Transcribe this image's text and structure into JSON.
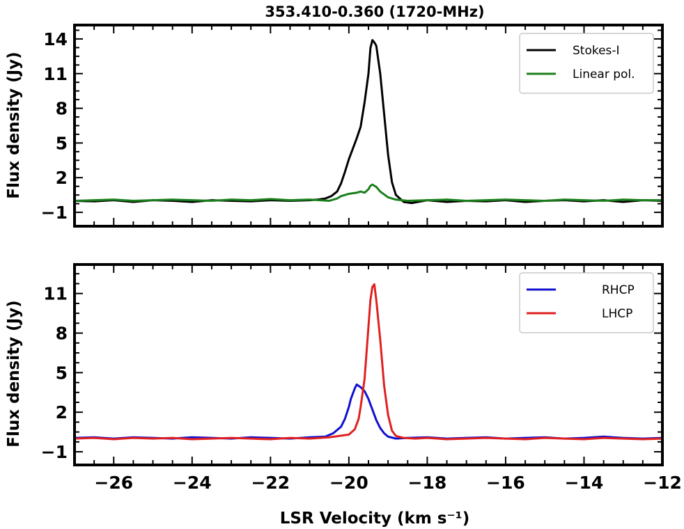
{
  "chart_data": [
    {
      "type": "line",
      "title": "353.410-0.360 (1720-MHz)",
      "xlabel": "",
      "ylabel": "Flux density (Jy)",
      "xlim": [
        -27,
        -12
      ],
      "ylim": [
        -2.2,
        15.2
      ],
      "yticks": [
        -1,
        2,
        5,
        8,
        11,
        14
      ],
      "ytick_labels": [
        "−1",
        "2",
        "5",
        "8",
        "11",
        "14"
      ],
      "show_xtick_labels": false,
      "legend_position": "top-right",
      "series": [
        {
          "name": "Stokes-I",
          "color": "#000000",
          "x": [
            -27.0,
            -26.5,
            -26.0,
            -25.5,
            -25.0,
            -24.5,
            -24.0,
            -23.5,
            -23.0,
            -22.5,
            -22.0,
            -21.5,
            -21.0,
            -20.8,
            -20.6,
            -20.45,
            -20.3,
            -20.2,
            -20.1,
            -20.0,
            -19.9,
            -19.8,
            -19.7,
            -19.6,
            -19.5,
            -19.45,
            -19.4,
            -19.35,
            -19.3,
            -19.2,
            -19.1,
            -19.0,
            -18.9,
            -18.8,
            -18.6,
            -18.4,
            -18.0,
            -17.5,
            -17.0,
            -16.5,
            -16.0,
            -15.5,
            -15.0,
            -14.5,
            -14.0,
            -13.5,
            -13.0,
            -12.5,
            -12.0
          ],
          "y": [
            0.0,
            -0.05,
            0.05,
            -0.1,
            0.05,
            0.0,
            -0.1,
            0.05,
            0.0,
            -0.05,
            0.05,
            0.0,
            0.05,
            0.1,
            0.2,
            0.4,
            0.8,
            1.5,
            2.5,
            3.6,
            4.5,
            5.4,
            6.4,
            8.5,
            11.0,
            13.2,
            13.9,
            13.7,
            13.4,
            11.0,
            7.5,
            4.0,
            1.6,
            0.5,
            -0.1,
            -0.2,
            0.05,
            -0.1,
            0.0,
            -0.05,
            0.05,
            -0.1,
            0.0,
            0.05,
            -0.05,
            0.05,
            -0.1,
            0.05,
            0.0
          ]
        },
        {
          "name": "Linear pol.",
          "color": "#1a7f1a",
          "x": [
            -27.0,
            -26.5,
            -26.0,
            -25.5,
            -25.0,
            -24.5,
            -24.0,
            -23.5,
            -23.0,
            -22.5,
            -22.0,
            -21.5,
            -21.0,
            -20.5,
            -20.3,
            -20.2,
            -20.0,
            -19.8,
            -19.7,
            -19.6,
            -19.5,
            -19.45,
            -19.4,
            -19.35,
            -19.3,
            -19.2,
            -19.0,
            -18.8,
            -18.5,
            -18.0,
            -17.5,
            -17.0,
            -16.5,
            -16.0,
            -15.5,
            -15.0,
            -14.5,
            -14.0,
            -13.5,
            -13.0,
            -12.5,
            -12.0
          ],
          "y": [
            0.0,
            0.05,
            0.1,
            0.0,
            0.05,
            0.1,
            0.05,
            0.0,
            0.1,
            0.05,
            0.15,
            0.05,
            0.1,
            0.0,
            0.2,
            0.4,
            0.6,
            0.7,
            0.8,
            0.7,
            1.0,
            1.3,
            1.4,
            1.3,
            1.2,
            0.8,
            0.3,
            0.1,
            0.0,
            0.05,
            0.1,
            0.0,
            0.05,
            0.1,
            0.05,
            0.0,
            0.1,
            0.05,
            0.0,
            0.1,
            0.05,
            0.05
          ]
        }
      ]
    },
    {
      "type": "line",
      "title": "",
      "xlabel": "LSR Velocity (km s⁻¹)",
      "ylabel": "Flux density (Jy)",
      "xlim": [
        -27,
        -12
      ],
      "ylim": [
        -2.0,
        13.2
      ],
      "xticks": [
        -26,
        -24,
        -22,
        -20,
        -18,
        -16,
        -14,
        -12
      ],
      "xtick_labels": [
        "−26",
        "−24",
        "−22",
        "−20",
        "−18",
        "−16",
        "−14",
        "−12"
      ],
      "yticks": [
        -1,
        2,
        5,
        8,
        11
      ],
      "ytick_labels": [
        "−1",
        "2",
        "5",
        "8",
        "11"
      ],
      "show_xtick_labels": true,
      "legend_position": "top-right",
      "series": [
        {
          "name": "RHCP",
          "color": "#1010d0",
          "x": [
            -27.0,
            -26.5,
            -26.0,
            -25.5,
            -25.0,
            -24.5,
            -24.0,
            -23.5,
            -23.0,
            -22.5,
            -22.0,
            -21.5,
            -21.0,
            -20.6,
            -20.4,
            -20.2,
            -20.1,
            -20.0,
            -19.95,
            -19.9,
            -19.85,
            -19.8,
            -19.75,
            -19.7,
            -19.6,
            -19.5,
            -19.4,
            -19.3,
            -19.2,
            -19.1,
            -19.0,
            -18.8,
            -18.5,
            -18.0,
            -17.5,
            -17.0,
            -16.5,
            -16.0,
            -15.5,
            -15.0,
            -14.5,
            -14.0,
            -13.5,
            -13.0,
            -12.5,
            -12.0
          ],
          "y": [
            0.05,
            0.1,
            0.0,
            0.1,
            0.05,
            0.0,
            0.1,
            0.05,
            0.0,
            0.1,
            0.05,
            0.0,
            0.1,
            0.15,
            0.4,
            0.9,
            1.5,
            2.4,
            3.0,
            3.4,
            3.8,
            4.1,
            4.0,
            3.9,
            3.6,
            3.0,
            2.2,
            1.4,
            0.8,
            0.4,
            0.15,
            0.0,
            0.05,
            0.1,
            0.0,
            0.05,
            0.1,
            0.0,
            0.05,
            0.1,
            0.0,
            0.05,
            0.15,
            0.05,
            0.0,
            0.05
          ]
        },
        {
          "name": "LHCP",
          "color": "#e02020",
          "x": [
            -27.0,
            -26.5,
            -26.0,
            -25.5,
            -25.0,
            -24.5,
            -24.0,
            -23.5,
            -23.0,
            -22.5,
            -22.0,
            -21.5,
            -21.0,
            -20.5,
            -20.0,
            -19.85,
            -19.75,
            -19.7,
            -19.6,
            -19.55,
            -19.5,
            -19.45,
            -19.4,
            -19.35,
            -19.3,
            -19.2,
            -19.1,
            -19.0,
            -18.9,
            -18.8,
            -18.6,
            -18.3,
            -18.0,
            -17.5,
            -17.0,
            -16.5,
            -16.0,
            -15.5,
            -15.0,
            -14.5,
            -14.0,
            -13.5,
            -13.0,
            -12.5,
            -12.0
          ],
          "y": [
            0.0,
            0.05,
            -0.05,
            0.05,
            0.0,
            0.05,
            -0.05,
            0.0,
            0.05,
            0.0,
            -0.05,
            0.05,
            0.0,
            0.1,
            0.3,
            0.7,
            1.5,
            2.4,
            4.5,
            6.5,
            8.5,
            10.5,
            11.5,
            11.7,
            10.5,
            7.5,
            4.0,
            1.8,
            0.6,
            0.2,
            0.05,
            0.0,
            0.05,
            -0.05,
            0.0,
            0.05,
            0.0,
            -0.05,
            0.05,
            0.0,
            -0.05,
            0.05,
            0.0,
            -0.05,
            0.0
          ]
        }
      ]
    }
  ]
}
